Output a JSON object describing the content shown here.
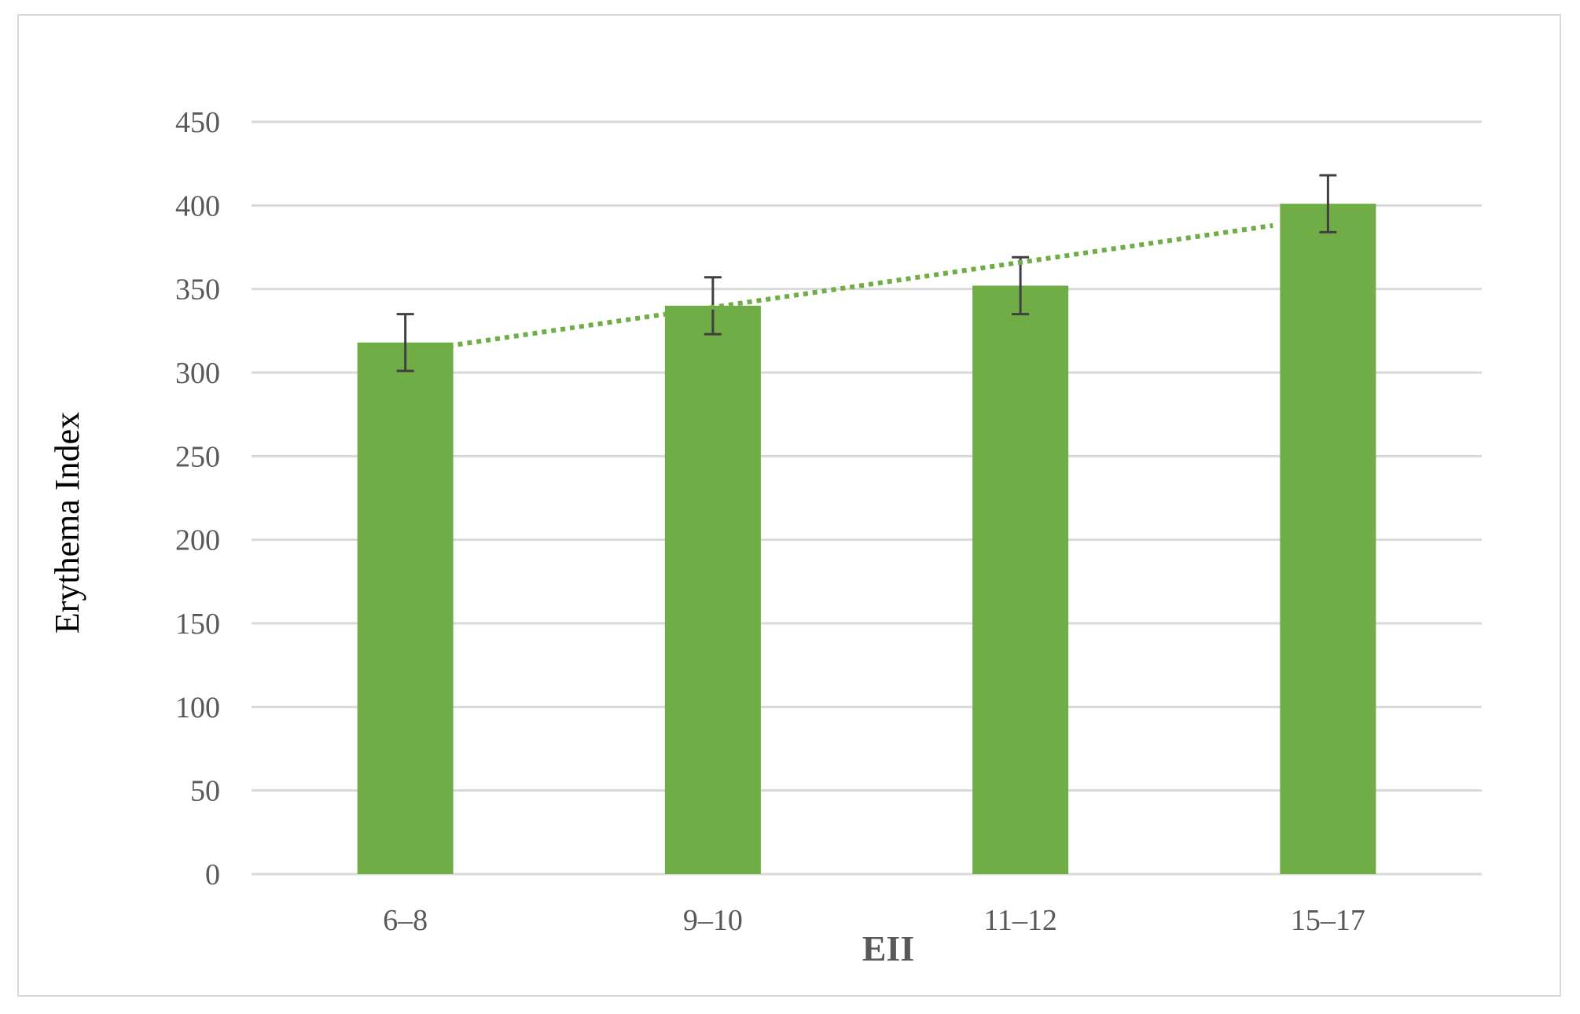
{
  "chart_data": {
    "type": "bar",
    "title": "",
    "xlabel": "EII",
    "ylabel": "Erythema Index",
    "categories": [
      "6–8",
      "9–10",
      "11–12",
      "15–17"
    ],
    "series": [
      {
        "values": [
          318,
          340,
          352,
          401
        ],
        "error": [
          17,
          17,
          17,
          17
        ]
      }
    ],
    "trendline": {
      "type": "linear",
      "style": "dotted",
      "start": 316,
      "end": 388
    },
    "ylim": [
      0,
      450
    ],
    "yticks": [
      "0",
      "50",
      "100",
      "150",
      "200",
      "250",
      "300",
      "350",
      "400",
      "450"
    ],
    "grid": true,
    "legend": "none",
    "colors": {
      "bar": "#70AD47",
      "trend": "#70AD47",
      "error": "#404040",
      "grid": "#d9d9d9"
    }
  }
}
